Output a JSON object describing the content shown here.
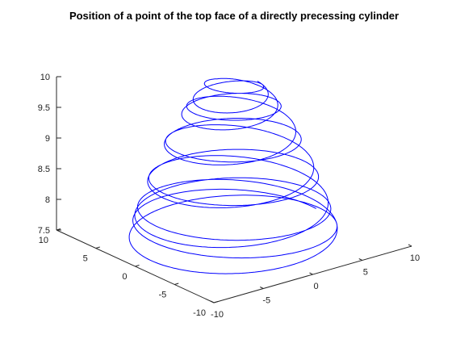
{
  "chart_data": {
    "type": "line",
    "projection": "3d",
    "title": "Position of a point of the top face of a directly precessing cylinder",
    "xlabel": "",
    "ylabel": "",
    "zlabel": "",
    "xlim": [
      -10,
      10
    ],
    "ylim": [
      -10,
      10
    ],
    "zlim": [
      7.5,
      10
    ],
    "x_ticks": [
      "-10",
      "-5",
      "0",
      "5",
      "10"
    ],
    "y_ticks": [
      "-10",
      "-5",
      "0",
      "5",
      "10"
    ],
    "z_ticks": [
      "7.5",
      "8",
      "8.5",
      "9",
      "9.5",
      "10"
    ],
    "grid": false,
    "legend": "none",
    "line_color": "#0000ff",
    "series": [
      {
        "model": "point on top face of a precessing cylinder: radius shrinks as height grows",
        "height_range": [
          7.6,
          9.95
        ],
        "max_radius": 8.3,
        "turns": 12
      }
    ]
  }
}
